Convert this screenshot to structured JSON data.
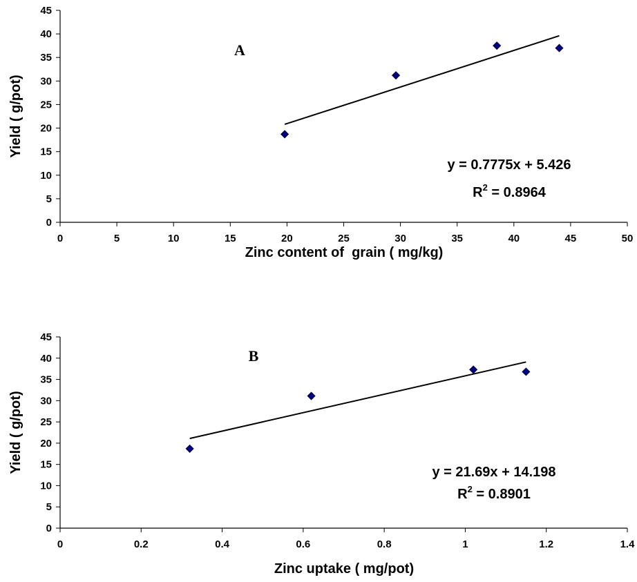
{
  "chart_data": [
    {
      "type": "scatter",
      "panel_label": "A",
      "x_label": "Zinc content of  grain ( mg/kg)",
      "y_label": "Yield ( g/pot)",
      "x": [
        19.8,
        29.6,
        38.5,
        44
      ],
      "values": [
        18.7,
        31.2,
        37.5,
        37
      ],
      "color": "#000080",
      "xlim": [
        0,
        50
      ],
      "xticks": [
        0,
        5,
        10,
        15,
        20,
        25,
        30,
        35,
        40,
        45,
        50
      ],
      "ylim": [
        0,
        45
      ],
      "yticks": [
        0,
        5,
        10,
        15,
        20,
        25,
        30,
        35,
        40,
        45
      ],
      "trendline": {
        "x": [
          19.8,
          44
        ],
        "values": [
          20.8,
          39.6
        ]
      },
      "equation": "y = 0.7775x + 5.426",
      "r2": {
        "base": "R",
        "sup": "2",
        "text": " = 0.8964"
      }
    },
    {
      "type": "scatter",
      "panel_label": "B",
      "x_label": "Zinc uptake ( mg/pot)",
      "y_label": "Yield ( g/pot)",
      "x": [
        0.32,
        0.62,
        1.02,
        1.15
      ],
      "values": [
        18.7,
        31.1,
        37.3,
        36.8
      ],
      "color": "#000080",
      "xlim": [
        0,
        1.4
      ],
      "xticks": [
        0,
        0.2,
        0.4,
        0.6,
        0.8,
        1,
        1.2,
        1.4
      ],
      "ylim": [
        0,
        45
      ],
      "yticks": [
        0,
        5,
        10,
        15,
        20,
        25,
        30,
        35,
        40,
        45
      ],
      "trendline": {
        "x": [
          0.32,
          1.15
        ],
        "values": [
          21.1,
          39.1
        ]
      },
      "equation": "y = 21.69x + 14.198",
      "r2": {
        "base": "R",
        "sup": "2",
        "text": " = 0.8901"
      }
    }
  ]
}
